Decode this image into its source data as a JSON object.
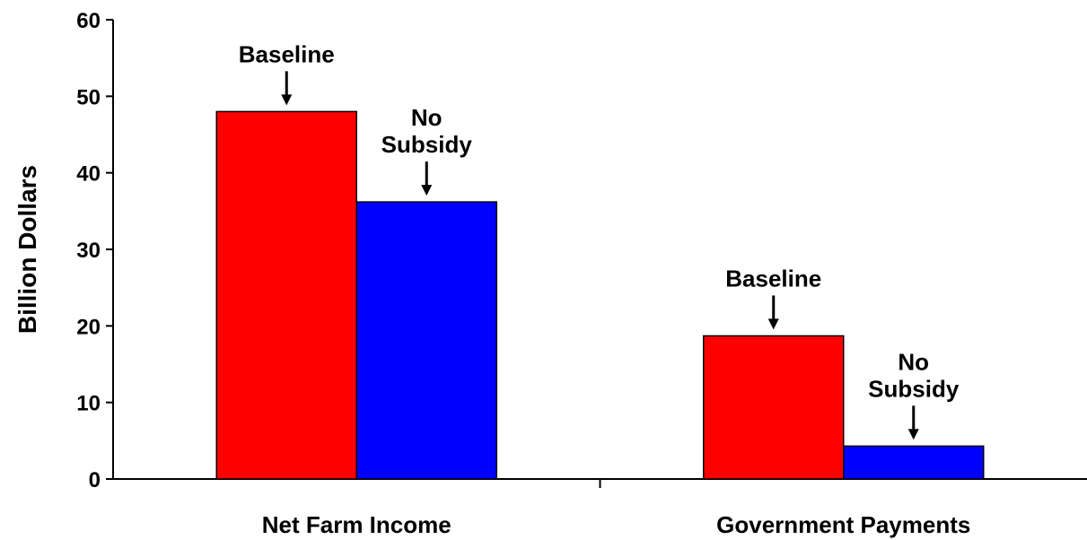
{
  "chart_data": {
    "type": "bar",
    "title": "",
    "xlabel": "",
    "ylabel": "Billion Dollars",
    "ylim": [
      0,
      60
    ],
    "yticks": [
      0,
      10,
      20,
      30,
      40,
      50,
      60
    ],
    "grid": false,
    "legend": "none",
    "categories": [
      "Net Farm Income",
      "Government Payments"
    ],
    "series": [
      {
        "name": "Baseline",
        "color": "#ff0000",
        "values": [
          48,
          18.7
        ]
      },
      {
        "name": "No Subsidy",
        "color": "#0000ff",
        "values": [
          36.2,
          4.3
        ]
      }
    ],
    "annotations": [
      {
        "category": 0,
        "series": 0,
        "lines": [
          "Baseline"
        ]
      },
      {
        "category": 0,
        "series": 1,
        "lines": [
          "No",
          "Subsidy"
        ]
      },
      {
        "category": 1,
        "series": 0,
        "lines": [
          "Baseline"
        ]
      },
      {
        "category": 1,
        "series": 1,
        "lines": [
          "No",
          "Subsidy"
        ]
      }
    ]
  }
}
